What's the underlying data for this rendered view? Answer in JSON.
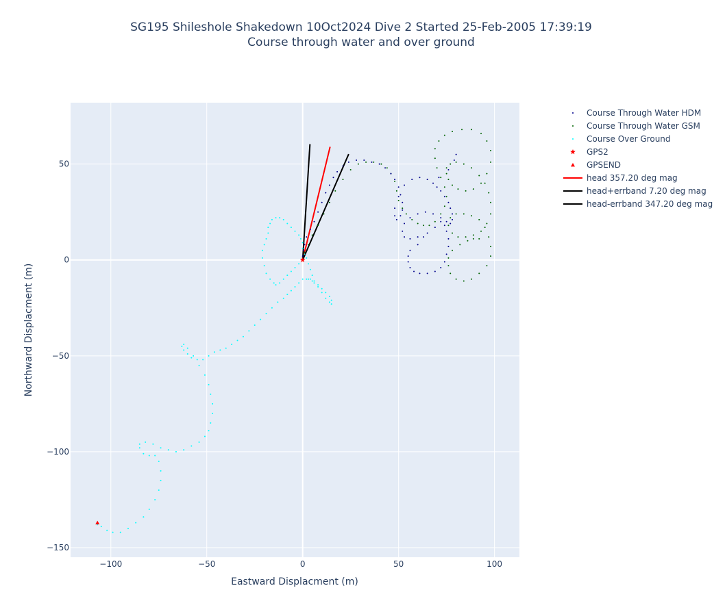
{
  "chart_data": {
    "type": "scatter",
    "title": "SG195 Shileshole Shakedown 10Oct2024 Dive 2 Started 25-Feb-2005 17:39:19",
    "subtitle": "Course through water and over ground",
    "xlabel": "Eastward Displacment (m)",
    "ylabel": "Northward Displacment (m)",
    "xlim": [
      -121,
      113
    ],
    "ylim": [
      -155,
      82
    ],
    "xticks": [
      -100,
      -50,
      0,
      50,
      100
    ],
    "yticks": [
      -150,
      -100,
      -50,
      0,
      50
    ],
    "xtick_labels": [
      "−100",
      "−50",
      "0",
      "50",
      "100"
    ],
    "ytick_labels": [
      "−150",
      "−100",
      "−50",
      "0",
      "50"
    ],
    "grid": true,
    "legend_position": "right",
    "colors": {
      "plot_bg": "#e5ecf6",
      "grid": "#ffffff",
      "hdm": "#00008b",
      "gsm": "#006400",
      "cog": "#00ffff",
      "gps": "#ff0000",
      "head": "#ff0000",
      "errband": "#000000"
    },
    "series": [
      {
        "name": "Course Through Water HDM",
        "kind": "dots",
        "color": "#00008b",
        "x": [
          0,
          0.5,
          1,
          2,
          4,
          6,
          8,
          10,
          12,
          14,
          16,
          18,
          21,
          24,
          28,
          32,
          36,
          40,
          43,
          46,
          48,
          50,
          51,
          52,
          52,
          51,
          49,
          48,
          48,
          50,
          53,
          57,
          61,
          65,
          68,
          70,
          72,
          74,
          76,
          77,
          78,
          78,
          77,
          75,
          72,
          68,
          64,
          60,
          56,
          53,
          52,
          53,
          56,
          60,
          65,
          69,
          72,
          74,
          75,
          76,
          76,
          75,
          74,
          72,
          69,
          65,
          61,
          58,
          56,
          55,
          55,
          56,
          60,
          63,
          71,
          76,
          79,
          80
        ],
        "y": [
          2,
          5,
          8,
          12,
          16,
          20,
          25,
          30,
          35,
          39,
          43,
          46,
          49,
          51,
          52,
          52,
          51,
          50,
          48,
          45,
          42,
          38,
          34,
          30,
          26,
          23,
          21,
          23,
          27,
          33,
          39,
          42,
          43,
          42,
          40,
          38,
          36,
          33,
          30,
          27,
          24,
          21,
          19,
          20,
          22,
          24,
          25,
          24,
          22,
          19,
          15,
          12,
          11,
          12,
          14,
          17,
          20,
          18,
          15,
          11,
          7,
          3,
          -1,
          -4,
          -6,
          -7,
          -7,
          -6,
          -4,
          -1,
          2,
          5,
          8,
          12,
          43,
          47,
          52,
          55
        ]
      },
      {
        "name": "Course Through Water GSM",
        "kind": "dots",
        "color": "#006400",
        "x": [
          0,
          1,
          3,
          5,
          8,
          11,
          14,
          17,
          21,
          25,
          29,
          33,
          37,
          41,
          44,
          46,
          48,
          49,
          50,
          52,
          54,
          57,
          60,
          63,
          66,
          69,
          72,
          74,
          75,
          74,
          72,
          70,
          69,
          69,
          71,
          74,
          78,
          83,
          88,
          93,
          96,
          98,
          98,
          96,
          93,
          89,
          85,
          81,
          78,
          76,
          75,
          75,
          77,
          80,
          84,
          88,
          92,
          95,
          97,
          98,
          98,
          96,
          93,
          89,
          85,
          81,
          78,
          76,
          77,
          80,
          84,
          88,
          92,
          95,
          97,
          98,
          98,
          96,
          92,
          88,
          84,
          80,
          77,
          76,
          76,
          78,
          82,
          86,
          89,
          92
        ],
        "y": [
          1,
          4,
          8,
          13,
          18,
          24,
          30,
          36,
          42,
          47,
          50,
          51,
          51,
          50,
          48,
          45,
          41,
          36,
          31,
          27,
          24,
          21,
          19,
          18,
          18,
          20,
          24,
          28,
          33,
          38,
          43,
          48,
          53,
          58,
          62,
          65,
          67,
          68,
          68,
          66,
          62,
          57,
          51,
          45,
          40,
          37,
          36,
          37,
          39,
          42,
          45,
          48,
          50,
          51,
          50,
          48,
          44,
          40,
          35,
          30,
          24,
          19,
          15,
          13,
          12,
          12,
          14,
          18,
          22,
          24,
          24,
          23,
          21,
          17,
          12,
          7,
          2,
          -3,
          -7,
          -10,
          -11,
          -10,
          -7,
          -3,
          1,
          5,
          8,
          10,
          11,
          11
        ]
      },
      {
        "name": "Course Over Ground",
        "kind": "dots",
        "color": "#00ffff",
        "x": [
          0,
          -2,
          -4,
          -6,
          -8,
          -10,
          -12,
          -14,
          -15,
          -17,
          -19,
          -20,
          -21,
          -21,
          -20,
          -19,
          -18,
          -18,
          -17,
          -16,
          -14,
          -12,
          -10,
          -8,
          -6,
          -4,
          -2,
          -1,
          0,
          0,
          1,
          2,
          3,
          4,
          5,
          6,
          8,
          10,
          12,
          14,
          15,
          15,
          14,
          12,
          10,
          8,
          6,
          5,
          4,
          3,
          2,
          0,
          -2,
          -4,
          -6,
          -8,
          -10,
          -13,
          -16,
          -19,
          -22,
          -25,
          -28,
          -31,
          -34,
          -37,
          -40,
          -43,
          -46,
          -49,
          -52,
          -55,
          -58,
          -60,
          -62,
          -63,
          -62,
          -60,
          -57,
          -54,
          -51,
          -49,
          -48,
          -47,
          -47,
          -48,
          -49,
          -51,
          -54,
          -58,
          -62,
          -66,
          -70,
          -74,
          -78,
          -82,
          -85,
          -85,
          -83,
          -80,
          -77,
          -75,
          -74,
          -74,
          -75,
          -77,
          -80,
          -83,
          -87,
          -91,
          -95,
          -99,
          -102,
          -105,
          -107
        ],
        "y": [
          0,
          -2,
          -4,
          -6,
          -8,
          -10,
          -12,
          -13,
          -12,
          -10,
          -7,
          -3,
          1,
          5,
          8,
          11,
          14,
          17,
          19,
          21,
          22,
          22,
          21,
          19,
          17,
          15,
          13,
          11,
          9,
          6,
          3,
          1,
          -2,
          -5,
          -8,
          -11,
          -14,
          -17,
          -20,
          -22,
          -23,
          -21,
          -19,
          -17,
          -15,
          -13,
          -12,
          -11,
          -10,
          -10,
          -10,
          -10,
          -12,
          -14,
          -16,
          -18,
          -20,
          -22,
          -25,
          -28,
          -31,
          -34,
          -37,
          -40,
          -42,
          -44,
          -46,
          -47,
          -48,
          -50,
          -52,
          -52,
          -51,
          -49,
          -47,
          -45,
          -44,
          -46,
          -50,
          -55,
          -60,
          -65,
          -70,
          -75,
          -80,
          -85,
          -89,
          -92,
          -95,
          -97,
          -99,
          -100,
          -99,
          -98,
          -96,
          -95,
          -96,
          -98,
          -101,
          -102,
          -102,
          -105,
          -110,
          -115,
          -120,
          -125,
          -130,
          -134,
          -137,
          -140,
          -142,
          -142,
          -141,
          -139,
          -138
        ]
      },
      {
        "name": "GPS2",
        "kind": "star",
        "color": "#ff0000",
        "x": [
          0
        ],
        "y": [
          0
        ]
      },
      {
        "name": "GPSEND",
        "kind": "triangle",
        "color": "#ff0000",
        "x": [
          -107
        ],
        "y": [
          -137
        ]
      },
      {
        "name": "head 357.20 deg mag",
        "kind": "line",
        "color": "#ff0000",
        "x": [
          0,
          14.3
        ],
        "y": [
          0,
          59
        ]
      },
      {
        "name": "head+errband 7.20 deg mag",
        "kind": "line",
        "color": "#000000",
        "x": [
          0,
          24
        ],
        "y": [
          0,
          55.2
        ]
      },
      {
        "name": "head-errband 347.20 deg mag",
        "kind": "line",
        "color": "#000000",
        "x": [
          0,
          3.8
        ],
        "y": [
          0,
          60.4
        ]
      }
    ]
  }
}
